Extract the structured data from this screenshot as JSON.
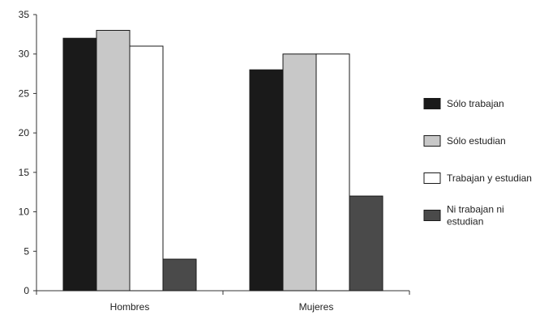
{
  "chart_data": {
    "type": "bar",
    "title": "",
    "xlabel": "",
    "ylabel": "",
    "categories": [
      "Hombres",
      "Mujeres"
    ],
    "series": [
      {
        "name": "Sólo trabajan",
        "values": [
          32,
          28
        ],
        "color": "#1a1a1a"
      },
      {
        "name": "Sólo estudian",
        "values": [
          33,
          30
        ],
        "color": "#c8c8c8"
      },
      {
        "name": "Trabajan y estudian",
        "values": [
          31,
          30
        ],
        "color": "#ffffff"
      },
      {
        "name": "Ni trabajan ni estudian",
        "values": [
          4,
          12
        ],
        "color": "#4a4a4a"
      }
    ],
    "legend_lines": [
      [
        "Sólo trabajan"
      ],
      [
        "Sólo estudian"
      ],
      [
        "Trabajan y estudian"
      ],
      [
        "Ni trabajan ni",
        "estudian"
      ]
    ],
    "ylim": [
      0,
      35
    ],
    "yticks": [
      0,
      5,
      10,
      15,
      20,
      25,
      30,
      35
    ],
    "grid": false,
    "legend_position": "right"
  }
}
